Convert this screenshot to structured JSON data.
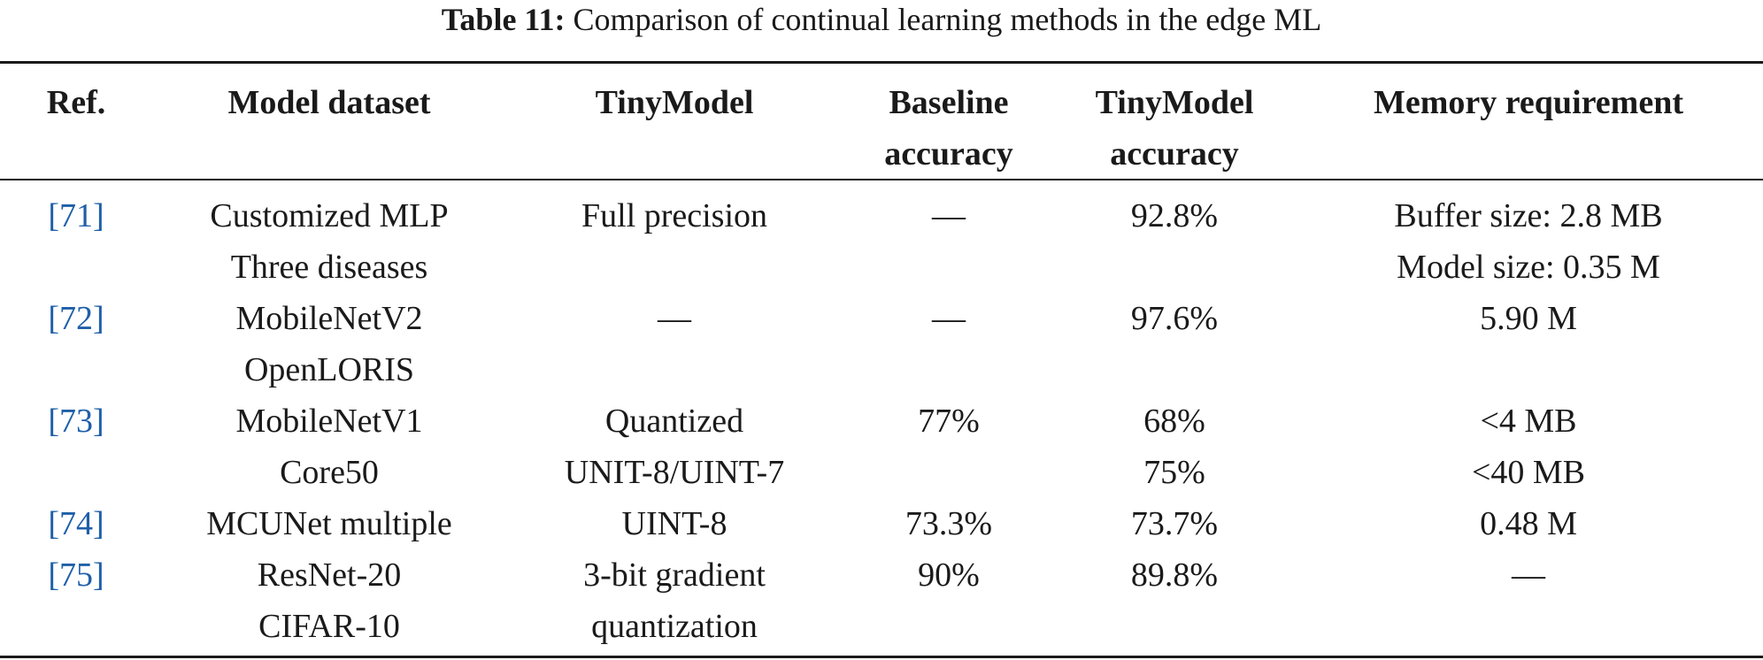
{
  "caption": {
    "label": "Table 11:",
    "text": "Comparison of continual learning methods in the edge ML"
  },
  "headers": {
    "ref": [
      "Ref."
    ],
    "model_dataset": [
      "Model dataset"
    ],
    "tinymodel": [
      "TinyModel"
    ],
    "baseline": [
      "Baseline",
      "accuracy"
    ],
    "tiny_acc": [
      "TinyModel",
      "accuracy"
    ],
    "memory": [
      "Memory requirement"
    ]
  },
  "rows": [
    {
      "ref": "[71]",
      "model": [
        "Customized MLP",
        "Three diseases"
      ],
      "tinymodel": [
        "Full precision"
      ],
      "baseline": [
        "—"
      ],
      "tiny_acc": [
        "92.8%"
      ],
      "memory": [
        "Buffer size: 2.8 MB",
        "Model size: 0.35 M"
      ]
    },
    {
      "ref": "[72]",
      "model": [
        "MobileNetV2",
        "OpenLORIS"
      ],
      "tinymodel": [
        "—"
      ],
      "baseline": [
        "—"
      ],
      "tiny_acc": [
        "97.6%"
      ],
      "memory": [
        "5.90 M"
      ]
    },
    {
      "ref": "[73]",
      "model": [
        "MobileNetV1",
        "Core50"
      ],
      "tinymodel": [
        "Quantized",
        "UNIT-8/UINT-7"
      ],
      "baseline": [
        "77%"
      ],
      "tiny_acc": [
        "68%",
        "75%"
      ],
      "memory": [
        "<4 MB",
        "<40 MB"
      ]
    },
    {
      "ref": "[74]",
      "model": [
        "MCUNet multiple"
      ],
      "tinymodel": [
        "UINT-8"
      ],
      "baseline": [
        "73.3%"
      ],
      "tiny_acc": [
        "73.7%"
      ],
      "memory": [
        "0.48 M"
      ]
    },
    {
      "ref": "[75]",
      "model": [
        "ResNet-20",
        "CIFAR-10"
      ],
      "tinymodel": [
        "3-bit gradient",
        "quantization"
      ],
      "baseline": [
        "90%"
      ],
      "tiny_acc": [
        "89.8%"
      ],
      "memory": [
        "—"
      ]
    }
  ]
}
